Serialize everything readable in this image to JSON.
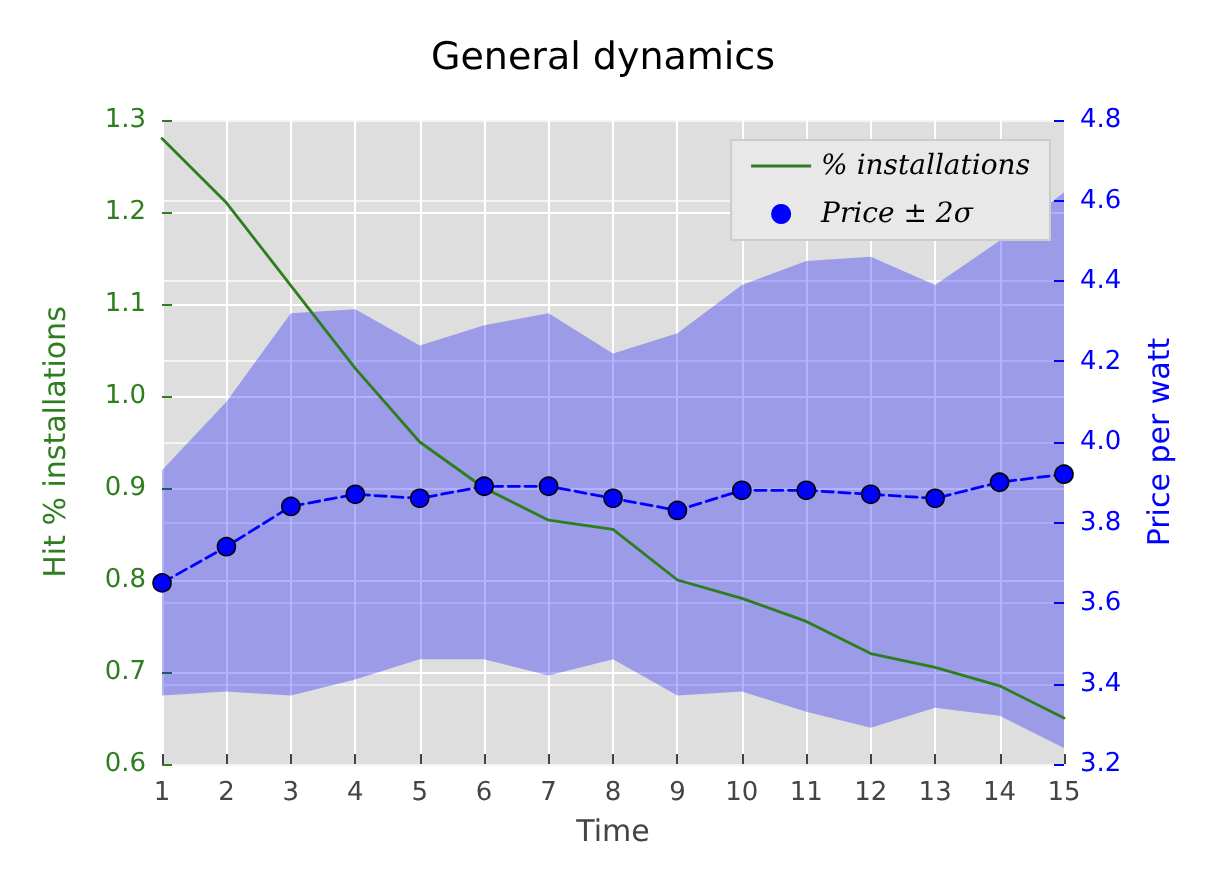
{
  "chart_data": {
    "type": "line",
    "title": "General dynamics",
    "xlabel": "Time",
    "ylabel": "Hit % installations",
    "y2label": "Price per watt",
    "x": [
      1,
      2,
      3,
      4,
      5,
      6,
      7,
      8,
      9,
      10,
      11,
      12,
      13,
      14,
      15
    ],
    "xlim": [
      1,
      15
    ],
    "xticks": [
      1,
      2,
      3,
      4,
      5,
      6,
      7,
      8,
      9,
      10,
      11,
      12,
      13,
      14,
      15
    ],
    "ylim": [
      0.6,
      1.3
    ],
    "yticks": [
      0.6,
      0.7,
      0.8,
      0.9,
      {
        "value": 1,
        "label": "1.0"
      },
      1.1,
      1.2,
      1.3
    ],
    "y2lim": [
      3.2,
      4.8
    ],
    "y2ticks": [
      3.2,
      3.4,
      3.6,
      3.8,
      {
        "value": 4,
        "label": "4.0"
      },
      4.2,
      4.4,
      4.6,
      4.8
    ],
    "grid": true,
    "legend": "top right",
    "series": [
      {
        "name": "% installations",
        "color": "#2e7d1e",
        "marker": "none",
        "line_style": "solid",
        "values": [
          1.28,
          1.21,
          1.12,
          1.03,
          0.95,
          0.9,
          0.865,
          0.855,
          0.8,
          0.78,
          0.755,
          0.72,
          0.705,
          0.685,
          0.65
        ]
      },
      {
        "name": "Price ± 2σ",
        "color": "#0000ff",
        "axis": "y2",
        "marker": "circle",
        "line_style": "dashed",
        "values": [
          3.65,
          3.74,
          3.84,
          3.87,
          3.86,
          3.89,
          3.89,
          3.86,
          3.83,
          3.88,
          3.88,
          3.87,
          3.86,
          3.9,
          3.92
        ],
        "lower": [
          3.37,
          3.38,
          3.37,
          3.41,
          3.46,
          3.46,
          3.42,
          3.46,
          3.37,
          3.38,
          3.33,
          3.29,
          3.34,
          3.32,
          3.24
        ],
        "upper": [
          3.93,
          4.1,
          4.32,
          4.33,
          4.24,
          4.29,
          4.32,
          4.22,
          4.27,
          4.39,
          4.45,
          4.46,
          4.39,
          4.5,
          4.62
        ]
      }
    ]
  }
}
